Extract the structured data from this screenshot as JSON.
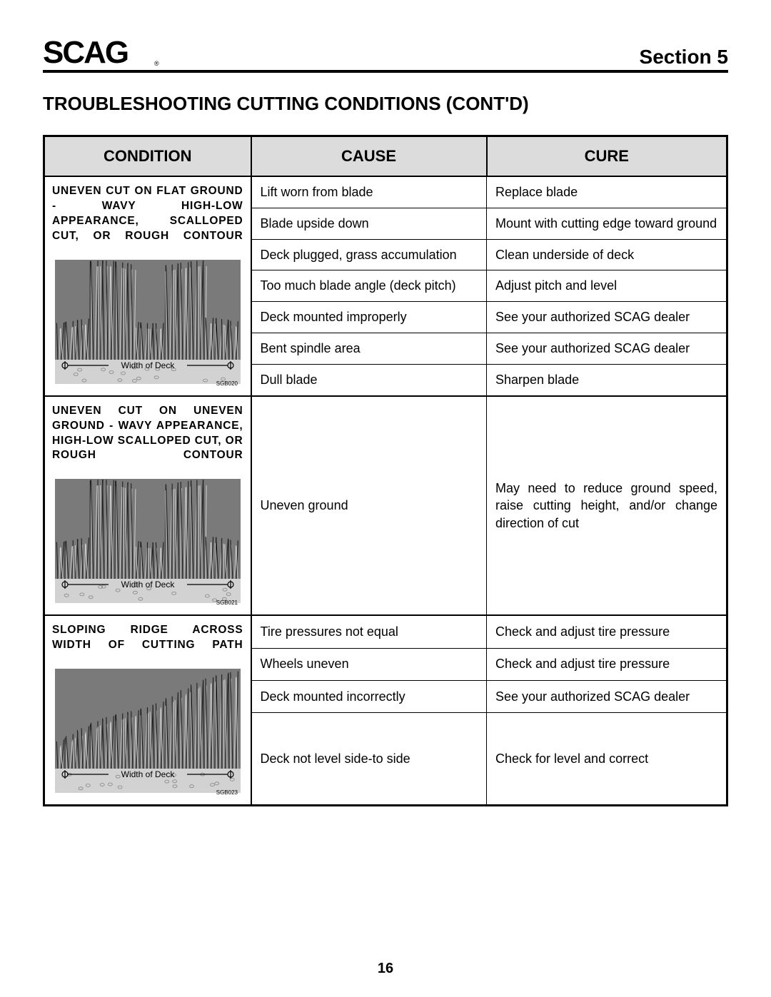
{
  "header": {
    "logo_text": "SCAG",
    "section_label": "Section 5"
  },
  "page_title": "TROUBLESHOOTING CUTTING CONDITIONS (CONT'D)",
  "columns": {
    "condition": "CONDITION",
    "cause": "CAUSE",
    "cure": "CURE"
  },
  "groups": [
    {
      "condition_title": "UNEVEN CUT ON FLAT GROUND - WAVY HIGH-LOW APPEARANCE, SCALLOPED CUT, OR ROUGH CONTOUR",
      "diagram_label": "Width of Deck",
      "diagram_code": "SGB020",
      "rows": [
        {
          "cause": "Lift worn from blade",
          "cure": "Replace blade"
        },
        {
          "cause": "Blade upside down",
          "cure": "Mount with cutting edge toward ground"
        },
        {
          "cause": "Deck plugged, grass accumulation",
          "cure": "Clean underside of deck"
        },
        {
          "cause": "Too much blade angle (deck pitch)",
          "cure": "Adjust pitch and level"
        },
        {
          "cause": "Deck mounted improperly",
          "cure": "See your authorized SCAG dealer"
        },
        {
          "cause": "Bent spindle area",
          "cure": "See your authorized SCAG dealer"
        },
        {
          "cause": "Dull blade",
          "cure": "Sharpen blade"
        }
      ]
    },
    {
      "condition_title": "UNEVEN CUT ON UNEVEN GROUND - WAVY APPEARANCE, HIGH-LOW SCALLOPED CUT, OR ROUGH CONTOUR",
      "diagram_label": "Width of Deck",
      "diagram_code": "SGB021",
      "rows": [
        {
          "cause": "Uneven ground",
          "cure": "May need to reduce ground speed, raise cutting height, and/or change direction of cut"
        }
      ]
    },
    {
      "condition_title": "SLOPING RIDGE ACROSS WIDTH OF CUTTING PATH",
      "diagram_label": "Width of Deck",
      "diagram_code": "SGB023",
      "rows": [
        {
          "cause": "Tire pressures not equal",
          "cure": "Check and adjust tire pressure"
        },
        {
          "cause": "Wheels uneven",
          "cure": "Check and adjust tire pressure"
        },
        {
          "cause": "Deck mounted incorrectly",
          "cure": "See your authorized SCAG dealer"
        },
        {
          "cause": "Deck not level side-to side",
          "cure": "Check for level and correct"
        }
      ]
    }
  ],
  "page_number": "16",
  "styling": {
    "page_bg": "#ffffff",
    "header_rule_color": "#000000",
    "header_rule_width": 4,
    "table_border_color": "#000000",
    "table_outer_border_width": 3,
    "th_bg": "#dcdcdc",
    "th_font_size": 22,
    "td_font_size": 18,
    "cond_title_font_size": 15.5,
    "cond_title_letter_spacing": 0.8,
    "grass_fill": "#6f6f6f",
    "grass_stroke": "#1e1e1e",
    "ground_fill": "#d2d2d2",
    "dim_line_color": "#000000",
    "label_font_size": 12,
    "code_font_size": 8
  }
}
